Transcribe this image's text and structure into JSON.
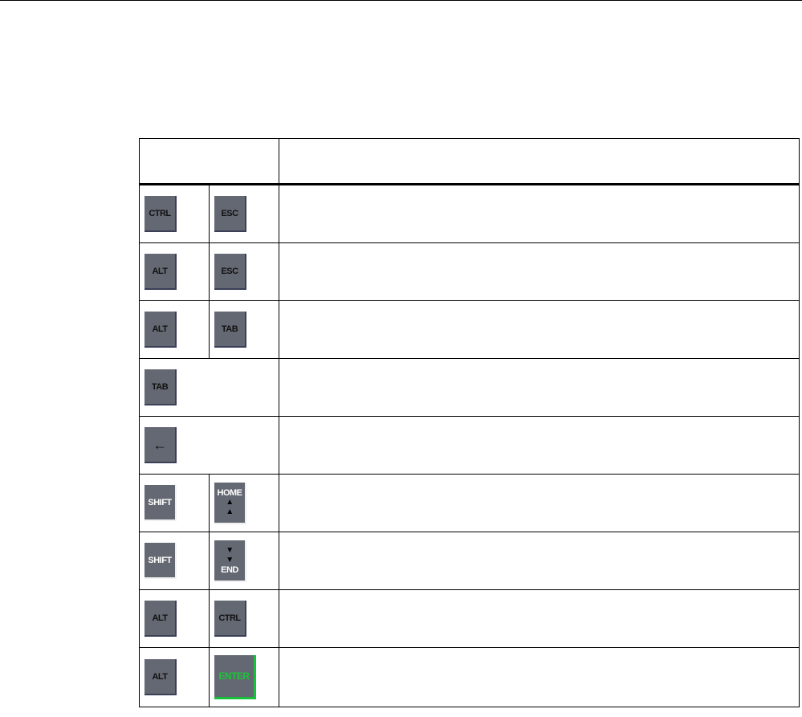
{
  "table": {
    "header": [
      "",
      ""
    ],
    "rows": [
      {
        "keys": [
          "CTRL",
          "ESC"
        ],
        "description": ""
      },
      {
        "keys": [
          "ALT",
          "ESC"
        ],
        "description": ""
      },
      {
        "keys": [
          "ALT",
          "TAB"
        ],
        "description": ""
      },
      {
        "keys": [
          "TAB"
        ],
        "description": ""
      },
      {
        "keys": [
          "←"
        ],
        "description": ""
      },
      {
        "keys": [
          "SHIFT",
          "HOME ▲"
        ],
        "description": ""
      },
      {
        "keys": [
          "SHIFT",
          "▼ END"
        ],
        "description": ""
      },
      {
        "keys": [
          "ALT",
          "CTRL"
        ],
        "description": ""
      },
      {
        "keys": [
          "ALT",
          "ENTER"
        ],
        "description": ""
      }
    ]
  },
  "labels": {
    "ctrl": "CTRL",
    "esc": "ESC",
    "alt": "ALT",
    "tab": "TAB",
    "arrow_left": "←",
    "shift": "SHIFT",
    "home": "HOME",
    "end": "END",
    "enter": "ENTER",
    "up": "▲",
    "down": "▼"
  },
  "colors": {
    "key_face": "#646872",
    "enter_text": "#1ec23c"
  }
}
